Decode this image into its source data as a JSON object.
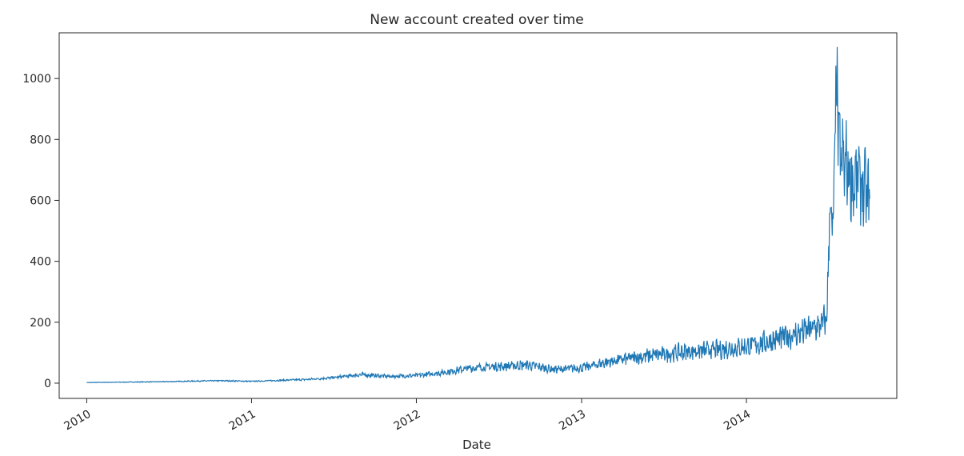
{
  "chart_data": {
    "type": "line",
    "title": "New account created over time",
    "xlabel": "Date",
    "ylabel": "",
    "x_range": [
      "2009-11-01",
      "2014-11-30"
    ],
    "ylim": [
      -50,
      1150
    ],
    "x_ticks": [
      "2010",
      "2011",
      "2012",
      "2013",
      "2014"
    ],
    "y_ticks": [
      0,
      200,
      400,
      600,
      800,
      1000
    ],
    "grid": false,
    "color": "#1f77b4",
    "series": [
      {
        "x": [
          "2010-01-01",
          "2010-03-01",
          "2010-05-01",
          "2010-07-01",
          "2010-09-01",
          "2010-11-01",
          "2011-01-01",
          "2011-03-01",
          "2011-05-01",
          "2011-07-01",
          "2011-09-01",
          "2011-11-01",
          "2012-01-01",
          "2012-03-01",
          "2012-05-01",
          "2012-07-01",
          "2012-09-01",
          "2012-11-01",
          "2013-01-01",
          "2013-03-01",
          "2013-05-01",
          "2013-07-01",
          "2013-09-01",
          "2013-11-01",
          "2014-01-01",
          "2014-03-01",
          "2014-05-01",
          "2014-06-15",
          "2014-06-28",
          "2014-07-05",
          "2014-07-12",
          "2014-07-19",
          "2014-07-26",
          "2014-08-05",
          "2014-08-15",
          "2014-08-25",
          "2014-09-05",
          "2014-09-15",
          "2014-09-25",
          "2014-10-01"
        ],
        "values": [
          2,
          3,
          4,
          5,
          7,
          8,
          6,
          9,
          12,
          18,
          28,
          22,
          25,
          35,
          50,
          55,
          60,
          45,
          50,
          70,
          85,
          95,
          105,
          110,
          120,
          140,
          165,
          190,
          210,
          600,
          480,
          1000,
          750,
          720,
          700,
          650,
          680,
          640,
          620,
          600
        ]
      }
    ]
  }
}
